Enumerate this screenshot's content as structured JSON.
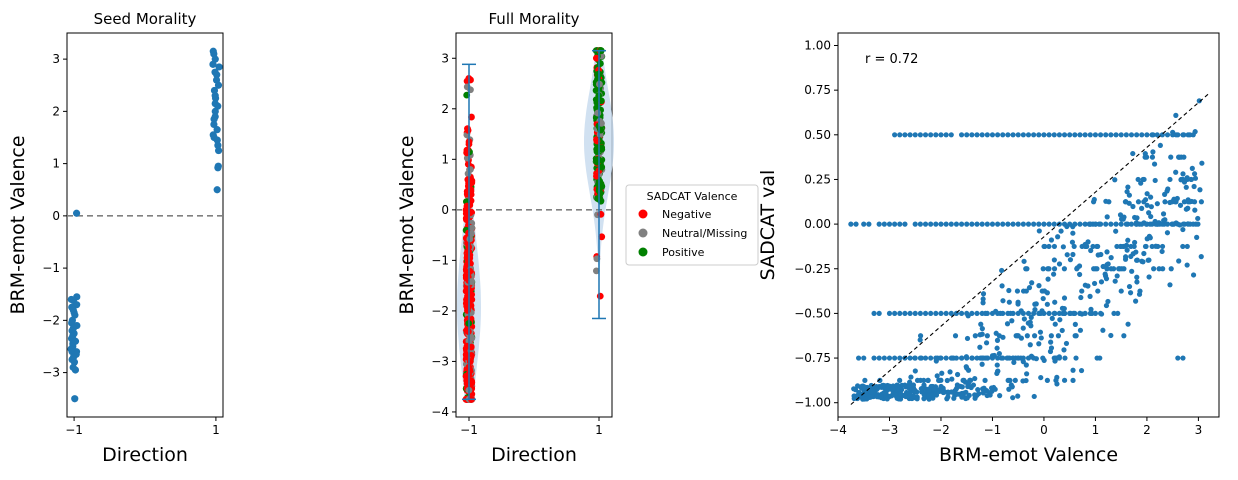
{
  "chart_data": [
    {
      "type": "scatter",
      "title": "Seed Morality",
      "xlabel": "Direction",
      "ylabel": "BRM-emot Valence",
      "xlim": [
        -1.1,
        1.1
      ],
      "ylim": [
        -3.85,
        3.5
      ],
      "xticks": [
        -1,
        1
      ],
      "yticks": [
        -3,
        -2,
        -1,
        0,
        1,
        2,
        3
      ],
      "reference_line": {
        "y": 0,
        "style": "dashed",
        "color": "#808080"
      },
      "point_color": "#1f77b4",
      "groups": [
        {
          "x": -1,
          "y": [
            0.05,
            -1.55,
            -1.6,
            -1.62,
            -1.7,
            -1.75,
            -1.8,
            -1.85,
            -1.9,
            -2.0,
            -2.05,
            -2.1,
            -2.15,
            -2.2,
            -2.25,
            -2.3,
            -2.35,
            -2.4,
            -2.45,
            -2.5,
            -2.55,
            -2.6,
            -2.6,
            -2.65,
            -2.7,
            -2.75,
            -2.8,
            -2.9,
            -2.95,
            -3.5
          ]
        },
        {
          "x": 1,
          "y": [
            3.15,
            3.1,
            3.0,
            2.9,
            2.85,
            2.75,
            2.7,
            2.6,
            2.5,
            2.4,
            2.3,
            2.25,
            2.15,
            2.1,
            2.0,
            1.9,
            1.85,
            1.75,
            1.65,
            1.55,
            1.5,
            1.45,
            1.35,
            1.25,
            0.95,
            0.92,
            0.5
          ]
        }
      ]
    },
    {
      "type": "scatter",
      "title": "Full Morality",
      "xlabel": "Direction",
      "ylabel": "BRM-emot Valence",
      "xlim": [
        -1.2,
        1.2
      ],
      "ylim": [
        -4.1,
        3.5
      ],
      "xticks": [
        -1,
        1
      ],
      "yticks": [
        -4,
        -3,
        -2,
        -1,
        0,
        1,
        2,
        3
      ],
      "reference_line": {
        "y": 0,
        "style": "dashed",
        "color": "#808080"
      },
      "violin": {
        "color": "#c6d9ee",
        "line_color": "#1f77b4",
        "neg": {
          "x": -1,
          "min": -3.75,
          "max": 2.88
        },
        "pos": {
          "x": 1,
          "min": -2.15,
          "max": 3.15
        }
      },
      "legend": {
        "title": "SADCAT Valence",
        "position": "right",
        "entries": [
          {
            "label": "Negative",
            "color": "#ff0000"
          },
          {
            "label": "Neutral/Missing",
            "color": "#808080"
          },
          {
            "label": "Positive",
            "color": "#008000"
          }
        ]
      },
      "groups": [
        {
          "x": -1,
          "range": [
            -3.75,
            2.9
          ],
          "category_mix": {
            "Negative": 0.7,
            "Neutral/Missing": 0.22,
            "Positive": 0.08
          }
        },
        {
          "x": 1,
          "range": [
            -2.15,
            3.15
          ],
          "category_mix": {
            "Negative": 0.2,
            "Neutral/Missing": 0.2,
            "Positive": 0.6
          }
        }
      ]
    },
    {
      "type": "scatter",
      "xlabel": "BRM-emot Valence",
      "ylabel": "SADCAT val",
      "xlim": [
        -4.0,
        3.4
      ],
      "ylim": [
        -1.08,
        1.07
      ],
      "xticks": [
        -4,
        -3,
        -2,
        -1,
        0,
        1,
        2,
        3
      ],
      "yticks": [
        -1.0,
        -0.75,
        -0.5,
        -0.25,
        0.0,
        0.25,
        0.5,
        0.75,
        1.0
      ],
      "annotation": "r = 0.72",
      "point_color": "#1f77b4",
      "regression_line": {
        "from": [
          -3.75,
          -1.01
        ],
        "to": [
          3.2,
          0.73
        ],
        "style": "dashed",
        "color": "#000000"
      },
      "series": [
        {
          "y_level": 0.0,
          "x": [
            -3.75,
            -3.5,
            -3.2,
            -3.0,
            -2.8,
            -2.5,
            -2.3,
            -2.1,
            -1.9,
            -1.7,
            -1.5,
            -1.3,
            -1.1,
            -0.9,
            -0.7,
            -0.5,
            -0.3,
            -0.1,
            0.1,
            0.3,
            0.5,
            0.7,
            0.9,
            1.1,
            1.3,
            1.5,
            1.7,
            1.9,
            2.1,
            2.3,
            2.5,
            2.8
          ]
        },
        {
          "y_level": 0.5,
          "x": [
            -2.9,
            -2.7,
            -2.5,
            -2.3,
            -2.1,
            -1.9,
            -1.6,
            -1.4,
            -1.2,
            -1.0,
            -0.8,
            -0.6,
            -0.4,
            -0.2,
            0.0,
            0.2,
            0.4,
            0.6,
            0.8,
            1.0,
            1.2,
            1.4,
            1.6,
            1.8,
            2.0,
            2.2,
            2.4,
            2.6,
            2.8
          ]
        },
        {
          "y_level": -0.5,
          "x": [
            -3.3,
            -3.0,
            -2.8,
            -2.6,
            -2.4,
            -2.2,
            -2.0,
            -1.8,
            -1.6,
            -1.4,
            -1.2,
            -1.0,
            -0.8,
            -0.6,
            -0.4,
            -0.2,
            0.0,
            0.2,
            0.4,
            0.6,
            0.8,
            1.0
          ]
        },
        {
          "y_level": -0.75,
          "x": [
            -3.6,
            -3.3,
            -3.1,
            -2.9,
            -2.7,
            -2.5,
            -2.3,
            -2.1,
            -1.9,
            -1.7,
            -1.5,
            -1.3,
            -1.1,
            -0.9,
            -0.7,
            -0.5,
            -0.3,
            0.2,
            2.6
          ]
        }
      ]
    }
  ]
}
